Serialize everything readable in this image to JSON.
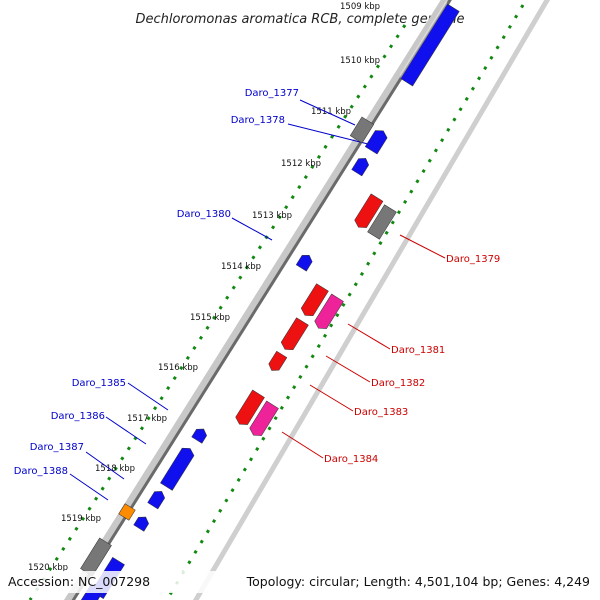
{
  "title": "Dechloromonas aromatica RCB, complete genome",
  "accession": "Accession: NC_007298",
  "summary": "Topology: circular; Length: 4,501,104 bp; Genes: 4,249",
  "colors": {
    "forward_label": "#0000cc",
    "reverse_label": "#cc0000",
    "blue": "#1010ee",
    "red": "#ee1111",
    "magenta": "#ee2299",
    "gray": "#777777",
    "orange": "#ff8c00",
    "tick": "#118811"
  },
  "tick_labels": [
    "1509 kbp",
    "1510 kbp",
    "1511 kbp",
    "1512 kbp",
    "1513 kbp",
    "1514 kbp",
    "1515 kbp",
    "1516 kbp",
    "1517 kbp",
    "1518 kbp",
    "1519 kbp",
    "1520 kbp"
  ],
  "genes": [
    {
      "name": "Daro_1377",
      "strand": "forward",
      "color": "gray"
    },
    {
      "name": "Daro_1378",
      "strand": "forward",
      "color": "blue"
    },
    {
      "name": "Daro_1379",
      "strand": "reverse",
      "color": "gray"
    },
    {
      "name": "Daro_1380",
      "strand": "forward",
      "color": "blue"
    },
    {
      "name": "Daro_1381",
      "strand": "reverse",
      "color": "magenta"
    },
    {
      "name": "Daro_1382",
      "strand": "reverse",
      "color": "red"
    },
    {
      "name": "Daro_1383",
      "strand": "reverse",
      "color": "red"
    },
    {
      "name": "Daro_1384",
      "strand": "reverse",
      "color": "magenta"
    },
    {
      "name": "Daro_1385",
      "strand": "forward",
      "color": "blue"
    },
    {
      "name": "Daro_1386",
      "strand": "forward",
      "color": "blue"
    },
    {
      "name": "Daro_1387",
      "strand": "forward",
      "color": "orange"
    },
    {
      "name": "Daro_1388",
      "strand": "forward",
      "color": "blue"
    }
  ]
}
